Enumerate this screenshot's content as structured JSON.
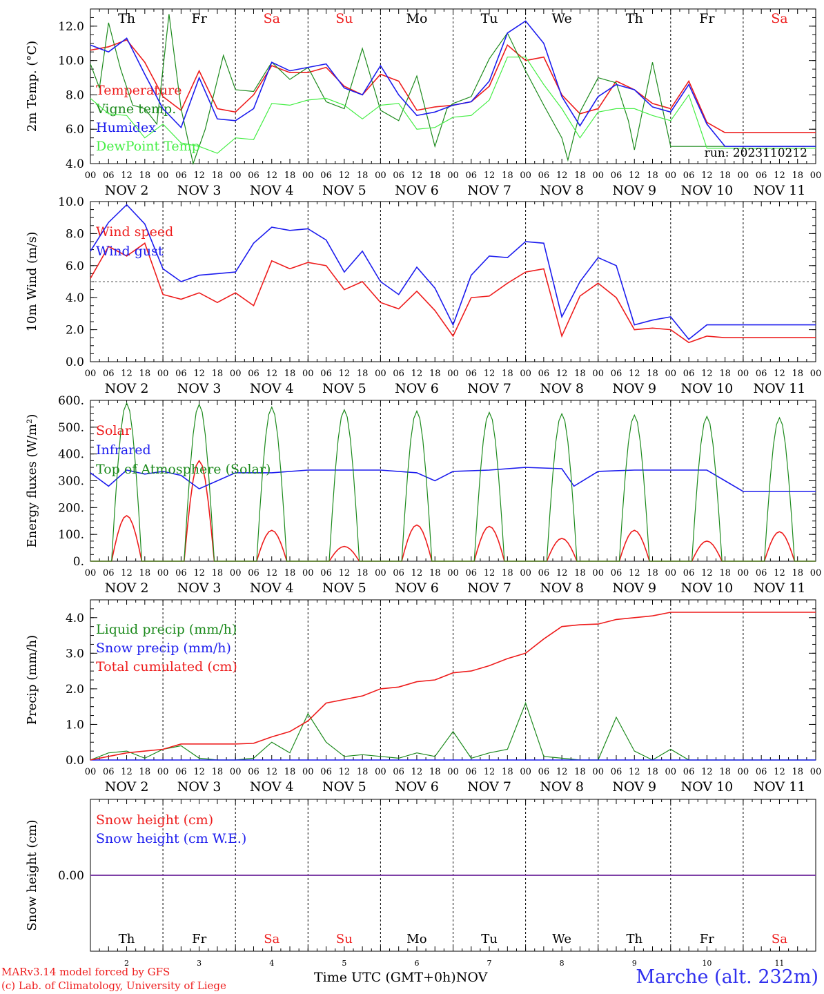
{
  "footer": {
    "credit_line1": "MARv3.14 model forced by GFS",
    "credit_line2": "(c) Lab. of Climatology, University of Liege",
    "axis_title": "Time UTC (GMT+0h)",
    "axis_month": "NOV",
    "station": "Marche (alt. 232m)"
  },
  "colors": {
    "red": "#ee1c1c",
    "blue": "#1c1cee",
    "green": "#1c8a1c",
    "light_green": "#44ee44",
    "purple": "#7a3aa0"
  },
  "days": {
    "weekday": [
      "Th",
      "Fr",
      "Sa",
      "Su",
      "Mo",
      "Tu",
      "We",
      "Th",
      "Fr",
      "Sa"
    ],
    "weekend": [
      false,
      false,
      true,
      true,
      false,
      false,
      false,
      false,
      false,
      true
    ],
    "date": [
      "NOV  2",
      "NOV  3",
      "NOV  4",
      "NOV  5",
      "NOV  6",
      "NOV  7",
      "NOV  8",
      "NOV  9",
      "NOV 10",
      "NOV 11"
    ],
    "date_num": [
      "2",
      "3",
      "4",
      "5",
      "6",
      "7",
      "8",
      "9",
      "10",
      "11"
    ],
    "hour_labels": [
      "00",
      "06",
      "12",
      "18"
    ],
    "final_hour_label": "00"
  },
  "chart_data": [
    {
      "type": "line",
      "ylabel": "2m Temp. (°C)",
      "ylim": [
        4,
        13
      ],
      "yticks": [
        4,
        6,
        8,
        10,
        12
      ],
      "ytick_labels": [
        "4.0",
        "6.0",
        "8.0",
        "10.0",
        "12.0"
      ],
      "annotation": "run: 2023110212",
      "show_weekdays": true,
      "x_unit": "hours since NOV 2 00 UTC",
      "series": [
        {
          "name": "Temperature",
          "color": "red",
          "x": [
            0,
            6,
            12,
            18,
            24,
            30,
            36,
            42,
            48,
            54,
            60,
            66,
            72,
            78,
            84,
            90,
            96,
            102,
            108,
            114,
            120,
            126,
            132,
            138,
            144,
            150,
            156,
            162,
            168,
            174,
            180,
            186,
            192,
            198,
            204,
            210,
            216,
            222,
            228,
            234,
            240
          ],
          "y": [
            10.6,
            10.8,
            11.2,
            9.9,
            7.9,
            7.1,
            9.4,
            7.2,
            7.0,
            8.0,
            9.7,
            9.3,
            9.3,
            9.6,
            8.5,
            8.0,
            9.2,
            8.8,
            7.1,
            7.3,
            7.4,
            7.6,
            8.5,
            10.9,
            10.0,
            10.2,
            8.0,
            6.9,
            7.2,
            8.8,
            8.3,
            7.5,
            7.2,
            8.8,
            6.4,
            5.8,
            5.8,
            5.8,
            5.8,
            5.8,
            5.8
          ]
        },
        {
          "name": "Vigne temp.",
          "color": "green",
          "x": [
            0,
            3,
            6,
            10,
            14,
            18,
            22,
            26,
            30,
            34,
            38,
            44,
            48,
            54,
            60,
            66,
            72,
            78,
            84,
            90,
            96,
            102,
            108,
            114,
            118,
            120,
            126,
            132,
            138,
            144,
            150,
            156,
            158,
            162,
            168,
            174,
            178,
            180,
            186,
            192,
            198,
            204,
            210,
            216,
            222,
            228,
            234,
            240
          ],
          "y": [
            9.8,
            8.4,
            12.2,
            9.5,
            7.4,
            7.2,
            6.3,
            12.7,
            7.2,
            4.0,
            6.0,
            10.3,
            8.3,
            8.2,
            9.9,
            8.9,
            9.6,
            7.6,
            7.2,
            10.7,
            7.1,
            6.5,
            9.1,
            5.0,
            7.2,
            7.5,
            7.9,
            10.1,
            11.6,
            9.4,
            7.4,
            5.5,
            4.2,
            7.0,
            9.0,
            8.7,
            6.5,
            4.8,
            9.9,
            5.0,
            5.0,
            5.0,
            5.0,
            5.0,
            5.0,
            5.0,
            5.0,
            5.0
          ]
        },
        {
          "name": "Humidex",
          "color": "blue",
          "x": [
            0,
            6,
            12,
            18,
            24,
            30,
            36,
            42,
            48,
            54,
            60,
            66,
            72,
            78,
            84,
            90,
            96,
            102,
            108,
            114,
            120,
            126,
            132,
            138,
            144,
            150,
            156,
            162,
            168,
            174,
            180,
            186,
            192,
            198,
            204,
            210,
            216,
            222,
            228,
            234,
            240
          ],
          "y": [
            10.9,
            10.5,
            11.3,
            9.2,
            7.2,
            6.1,
            9.0,
            6.6,
            6.5,
            7.2,
            9.9,
            9.4,
            9.6,
            9.8,
            8.4,
            8.0,
            9.7,
            8.0,
            6.8,
            7.0,
            7.4,
            7.6,
            8.8,
            11.6,
            12.3,
            11.0,
            7.9,
            6.2,
            7.9,
            8.6,
            8.3,
            7.3,
            7.0,
            8.6,
            6.3,
            5.0,
            5.0,
            5.0,
            5.0,
            5.0,
            5.0
          ]
        },
        {
          "name": "DewPoint Temp",
          "color": "light_green",
          "x": [
            0,
            6,
            12,
            18,
            24,
            30,
            36,
            42,
            48,
            54,
            60,
            66,
            72,
            78,
            84,
            90,
            96,
            102,
            108,
            114,
            120,
            126,
            132,
            138,
            144,
            150,
            156,
            162,
            168,
            174,
            180,
            186,
            192,
            198,
            204,
            210,
            216,
            222,
            228,
            234,
            240
          ],
          "y": [
            7.8,
            6.9,
            6.8,
            5.5,
            6.3,
            5.2,
            5.0,
            4.6,
            5.5,
            5.4,
            7.5,
            7.4,
            7.7,
            7.8,
            7.4,
            6.6,
            7.4,
            7.5,
            6.0,
            6.1,
            6.7,
            6.8,
            7.7,
            10.2,
            10.2,
            8.6,
            7.2,
            5.5,
            7.0,
            7.2,
            7.2,
            6.8,
            6.5,
            8.0,
            4.9,
            4.9,
            4.9,
            4.9,
            4.9,
            4.9,
            4.9
          ]
        }
      ]
    },
    {
      "type": "line",
      "ylabel": "10m Wind (m/s)",
      "ylim": [
        0,
        10
      ],
      "yticks": [
        0,
        2,
        4,
        6,
        8,
        10
      ],
      "ytick_labels": [
        "0.0",
        "2.0",
        "4.0",
        "6.0",
        "8.0",
        "10.0"
      ],
      "reference_line": 5,
      "x_unit": "hours since NOV 2 00 UTC",
      "series": [
        {
          "name": "Wind speed",
          "color": "red",
          "x": [
            0,
            6,
            12,
            18,
            24,
            30,
            36,
            42,
            48,
            54,
            60,
            66,
            72,
            78,
            84,
            90,
            96,
            102,
            108,
            114,
            120,
            126,
            132,
            138,
            144,
            150,
            156,
            162,
            168,
            174,
            180,
            186,
            192,
            198,
            204,
            210,
            216,
            222,
            228,
            234,
            240
          ],
          "y": [
            5.2,
            7.2,
            6.6,
            7.4,
            4.2,
            3.9,
            4.3,
            3.7,
            4.3,
            3.5,
            6.3,
            5.8,
            6.2,
            6.0,
            4.5,
            5.0,
            3.7,
            3.3,
            4.4,
            3.2,
            1.6,
            4.0,
            4.1,
            4.9,
            5.6,
            5.8,
            1.6,
            4.1,
            4.9,
            4.0,
            2.0,
            2.1,
            2.0,
            1.2,
            1.6,
            1.5,
            1.5,
            1.5,
            1.5,
            1.5,
            1.5
          ]
        },
        {
          "name": "Wind gust",
          "color": "blue",
          "x": [
            0,
            6,
            12,
            18,
            24,
            30,
            36,
            42,
            48,
            54,
            60,
            66,
            72,
            78,
            84,
            90,
            96,
            102,
            108,
            114,
            120,
            126,
            132,
            138,
            144,
            150,
            156,
            162,
            168,
            174,
            180,
            186,
            192,
            198,
            204,
            210,
            216,
            222,
            228,
            234,
            240
          ],
          "y": [
            6.9,
            8.7,
            9.8,
            8.6,
            5.8,
            5.0,
            5.4,
            5.5,
            5.6,
            7.4,
            8.4,
            8.2,
            8.3,
            7.6,
            5.6,
            6.9,
            5.0,
            4.2,
            5.9,
            4.6,
            2.3,
            5.4,
            6.6,
            6.5,
            7.5,
            7.4,
            2.8,
            5.0,
            6.5,
            6.0,
            2.3,
            2.6,
            2.8,
            1.4,
            2.3,
            2.3,
            2.3,
            2.3,
            2.3,
            2.3,
            2.3
          ]
        }
      ]
    },
    {
      "type": "line",
      "ylabel": "Energy fluxes (W/m²)",
      "ylim": [
        0,
        600
      ],
      "yticks": [
        0,
        100,
        200,
        300,
        400,
        500,
        600
      ],
      "ytick_labels": [
        "0.",
        "100.",
        "200.",
        "300.",
        "400.",
        "500.",
        "600."
      ],
      "x_unit": "hours since NOV 2 00 UTC",
      "series": [
        {
          "name": "Solar",
          "color": "red",
          "peaks": [
            170,
            375,
            115,
            55,
            135,
            130,
            85,
            115,
            75,
            110
          ]
        },
        {
          "name": "Infrared",
          "color": "blue",
          "x": [
            0,
            6,
            12,
            18,
            24,
            30,
            36,
            42,
            48,
            60,
            72,
            84,
            96,
            108,
            114,
            120,
            132,
            144,
            156,
            160,
            168,
            180,
            192,
            204,
            210,
            216,
            222,
            228,
            234,
            240
          ],
          "y": [
            330,
            280,
            340,
            325,
            335,
            320,
            270,
            300,
            330,
            330,
            340,
            340,
            340,
            330,
            300,
            335,
            340,
            350,
            345,
            280,
            335,
            340,
            340,
            340,
            300,
            260,
            260,
            260,
            260,
            260
          ]
        },
        {
          "name": "Top of Atmosphere (Solar)",
          "color": "green",
          "peaks": [
            590,
            585,
            575,
            565,
            560,
            555,
            550,
            545,
            540,
            535
          ]
        }
      ]
    },
    {
      "type": "line",
      "ylabel": "Precip (mm/h)",
      "ylim": [
        0,
        4.5
      ],
      "yticks": [
        0,
        1,
        2,
        3,
        4
      ],
      "ytick_labels": [
        "0.0",
        "1.0",
        "2.0",
        "3.0",
        "4.0"
      ],
      "x_unit": "hours since NOV 2 00 UTC",
      "series": [
        {
          "name": "Liquid precip (mm/h)",
          "color": "green",
          "x": [
            0,
            6,
            12,
            18,
            24,
            30,
            36,
            42,
            48,
            54,
            60,
            66,
            72,
            78,
            84,
            90,
            96,
            102,
            108,
            114,
            120,
            126,
            132,
            138,
            144,
            150,
            156,
            162,
            168,
            174,
            180,
            186,
            192,
            198,
            204,
            210,
            216,
            222,
            228,
            234,
            240
          ],
          "y": [
            0,
            0.2,
            0.25,
            0.05,
            0.3,
            0.4,
            0.05,
            0,
            0,
            0.05,
            0.5,
            0.2,
            1.3,
            0.5,
            0.1,
            0.15,
            0.1,
            0.05,
            0.2,
            0.1,
            0.8,
            0.05,
            0.2,
            0.3,
            1.6,
            0.1,
            0.05,
            0,
            0,
            1.2,
            0.25,
            0,
            0.3,
            0,
            0,
            0,
            0,
            0,
            0,
            0,
            0
          ]
        },
        {
          "name": "Snow precip (mm/h)",
          "color": "blue",
          "x": [
            0,
            240
          ],
          "y": [
            0,
            0
          ]
        },
        {
          "name": "Total cumulated (cm)",
          "color": "red",
          "x": [
            0,
            6,
            12,
            18,
            24,
            30,
            36,
            42,
            48,
            54,
            60,
            66,
            72,
            78,
            84,
            90,
            96,
            102,
            108,
            114,
            120,
            126,
            132,
            138,
            144,
            150,
            156,
            162,
            168,
            174,
            180,
            186,
            192,
            198,
            204,
            210,
            216,
            222,
            228,
            234,
            240
          ],
          "y": [
            0,
            0.1,
            0.2,
            0.25,
            0.3,
            0.45,
            0.45,
            0.45,
            0.45,
            0.47,
            0.65,
            0.8,
            1.1,
            1.6,
            1.7,
            1.8,
            2.0,
            2.05,
            2.2,
            2.25,
            2.45,
            2.5,
            2.65,
            2.85,
            3.0,
            3.4,
            3.75,
            3.8,
            3.82,
            3.95,
            4.0,
            4.05,
            4.15,
            4.15,
            4.15,
            4.15,
            4.15,
            4.15,
            4.15,
            4.15,
            4.15
          ]
        }
      ]
    },
    {
      "type": "line",
      "ylabel": "Snow height (cm)",
      "ylim": [
        -1,
        1
      ],
      "yticks": [
        0
      ],
      "ytick_labels": [
        "0.00"
      ],
      "x_unit": "hours since NOV 2 00 UTC",
      "series": [
        {
          "name": "Snow height (cm)",
          "color": "red",
          "x": [
            0,
            240
          ],
          "y": [
            0,
            0
          ]
        },
        {
          "name": "Snow height (cm W.E.)",
          "color": "blue",
          "x": [
            0,
            240
          ],
          "y": [
            0,
            0
          ]
        }
      ]
    }
  ]
}
